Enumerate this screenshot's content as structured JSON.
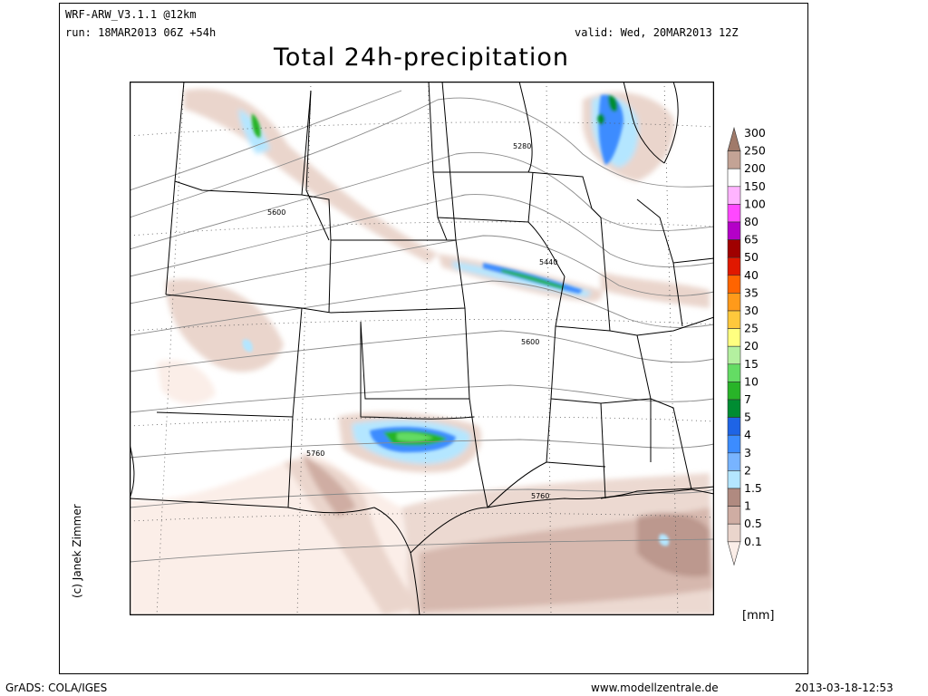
{
  "header": {
    "model": "WRF-ARW_V3.1.1 @12km",
    "run": "run: 18MAR2013 06Z +54h",
    "valid": "valid: Wed, 20MAR2013 12Z",
    "title": "Total 24h-precipitation"
  },
  "credit": "(c) Janek Zimmer",
  "footer": {
    "left": "GrADS: COLA/IGES",
    "center": "www.modellzentrale.de",
    "right": "2013-03-18-12:53"
  },
  "legend": {
    "unit": "[mm]",
    "levels": [
      {
        "label": "300",
        "color": "#a07a6a"
      },
      {
        "label": "250",
        "color": "#c3a395"
      },
      {
        "label": "200",
        "color": "#ffffff"
      },
      {
        "label": "150",
        "color": "#ffb4ff"
      },
      {
        "label": "100",
        "color": "#ff48ff"
      },
      {
        "label": "80",
        "color": "#b400c8"
      },
      {
        "label": "65",
        "color": "#a00000"
      },
      {
        "label": "50",
        "color": "#e01800"
      },
      {
        "label": "40",
        "color": "#ff6400"
      },
      {
        "label": "35",
        "color": "#ff9a1a"
      },
      {
        "label": "30",
        "color": "#ffc83c"
      },
      {
        "label": "25",
        "color": "#ffff80"
      },
      {
        "label": "20",
        "color": "#b4f0a0"
      },
      {
        "label": "15",
        "color": "#64dc64"
      },
      {
        "label": "10",
        "color": "#28b428"
      },
      {
        "label": "7",
        "color": "#008c32"
      },
      {
        "label": "5",
        "color": "#1e64e6"
      },
      {
        "label": "4",
        "color": "#3c8cff"
      },
      {
        "label": "3",
        "color": "#78b4ff"
      },
      {
        "label": "2",
        "color": "#b4e6ff"
      },
      {
        "label": "1.5",
        "color": "#b08a80"
      },
      {
        "label": "1",
        "color": "#cfada3"
      },
      {
        "label": "0.5",
        "color": "#ead5cc"
      },
      {
        "label": "0.1",
        "color": "#fbeee8"
      }
    ]
  },
  "map": {
    "contour_labels": [
      "5280",
      "5600",
      "5440",
      "5600",
      "5760",
      "5760"
    ]
  }
}
